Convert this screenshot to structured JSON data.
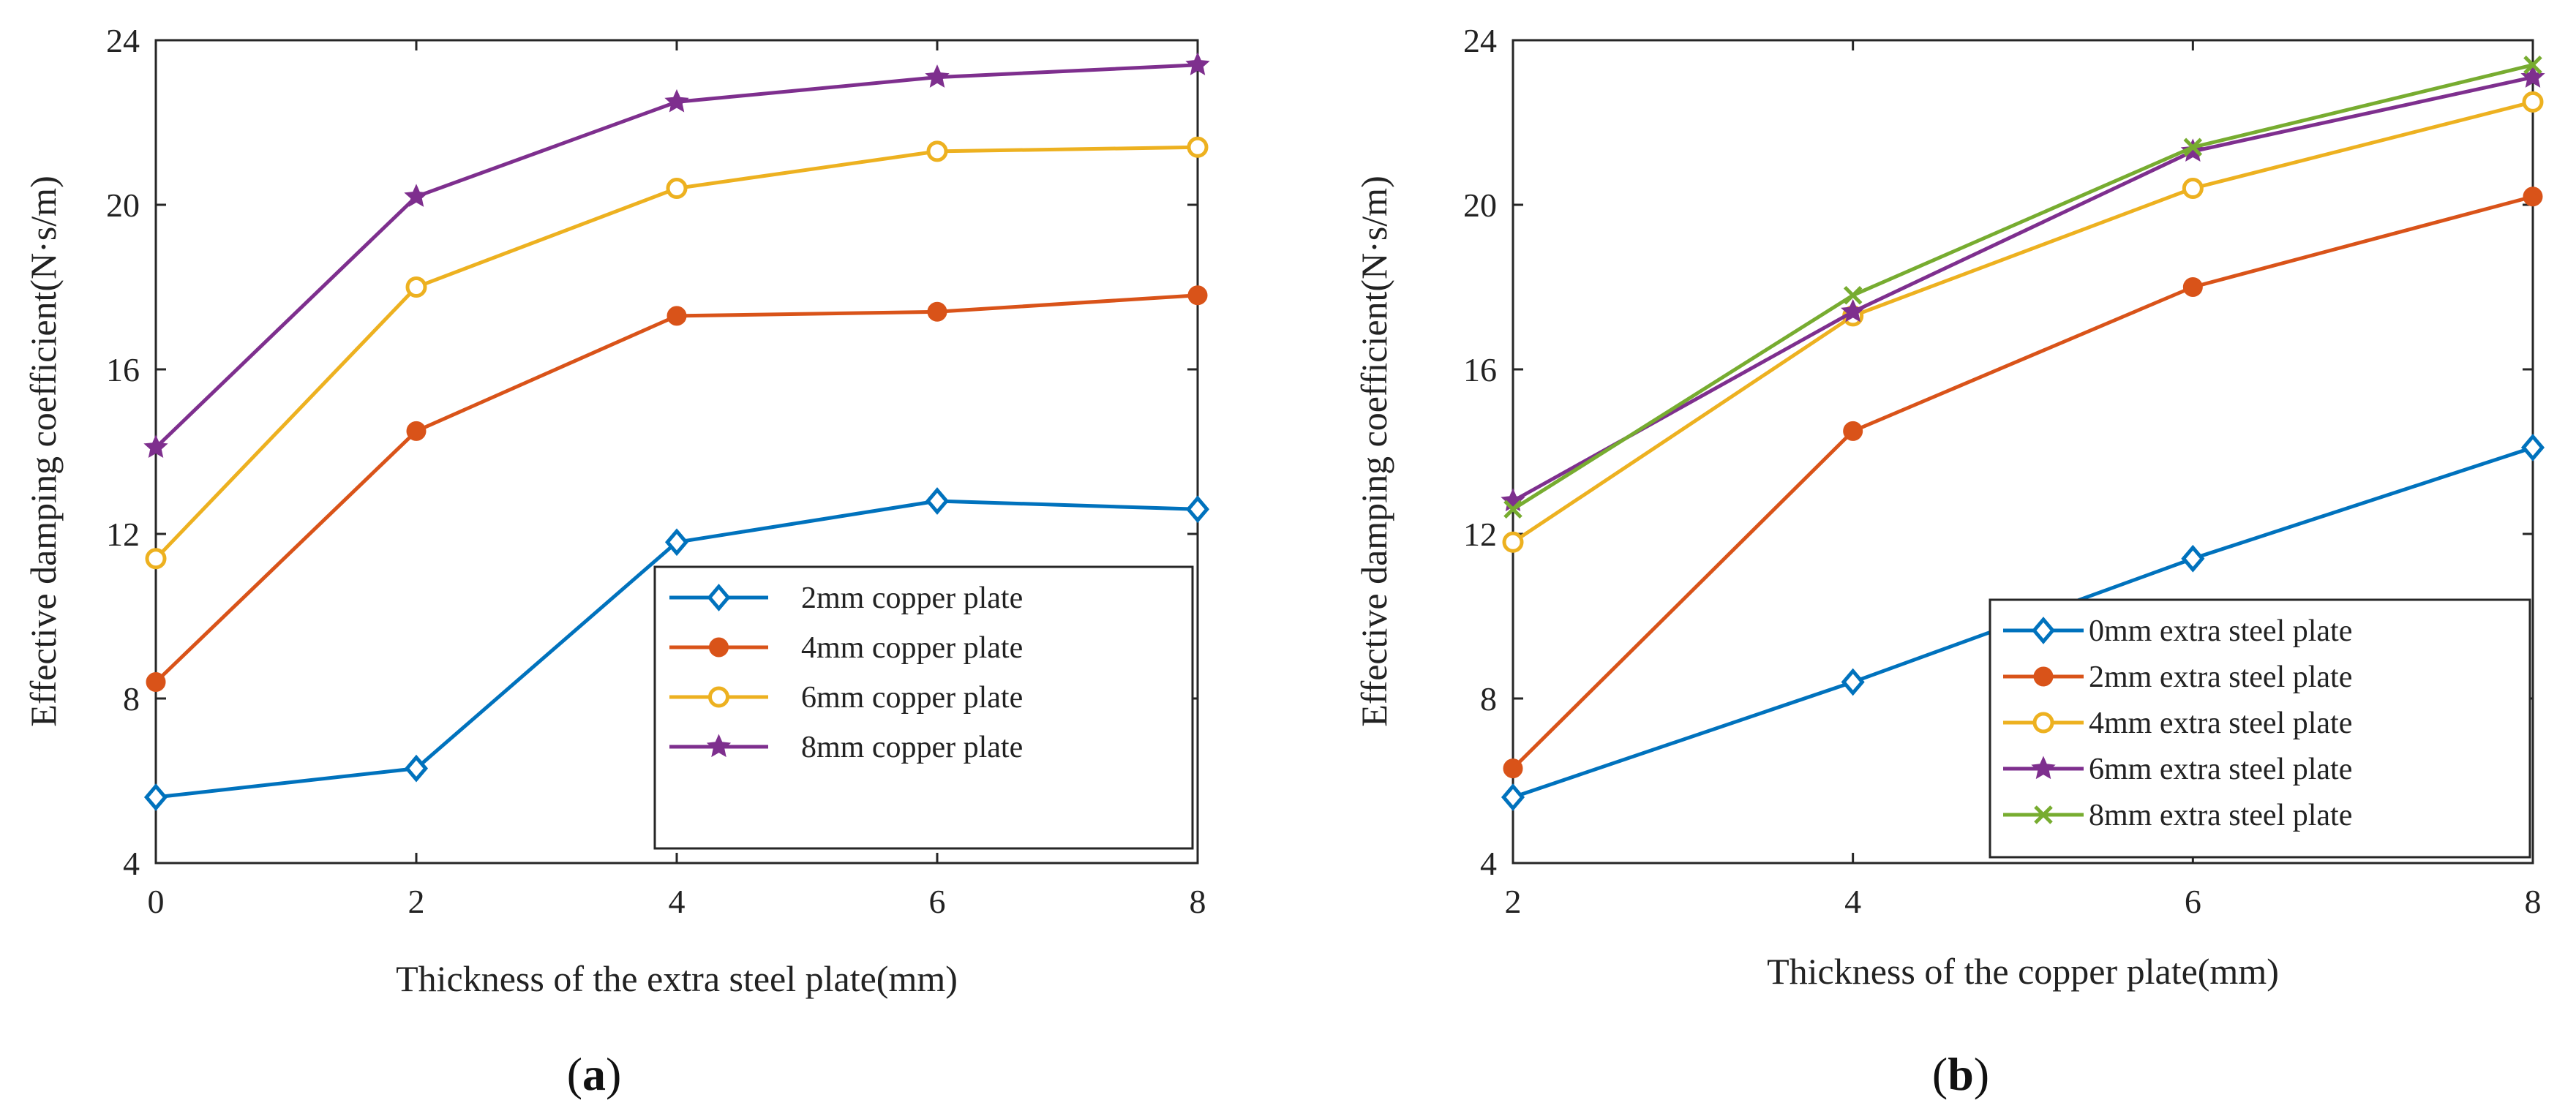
{
  "chart_data": [
    {
      "type": "line",
      "panel_caption": "(a)",
      "panel_caption_parts": [
        "(",
        "a",
        ")"
      ],
      "xlabel": "Thickness of the extra steel plate(mm)",
      "ylabel": "Effective damping coefficient(N·s/m)",
      "x": [
        0,
        2,
        4,
        6,
        8
      ],
      "xlim": [
        0,
        8
      ],
      "ylim": [
        4,
        24
      ],
      "xticks": [
        "0",
        "2",
        "4",
        "6",
        "8"
      ],
      "yticks": [
        "4",
        "8",
        "12",
        "16",
        "20",
        "24"
      ],
      "grid": false,
      "legend_position": "lower-right",
      "series": [
        {
          "name": "2mm copper plate",
          "color": "#0072BD",
          "marker": "diamond",
          "values": [
            5.6,
            6.3,
            11.8,
            12.8,
            12.6
          ]
        },
        {
          "name": "4mm copper plate",
          "color": "#D95319",
          "marker": "circle",
          "values": [
            8.4,
            14.5,
            17.3,
            17.4,
            17.8
          ]
        },
        {
          "name": "6mm copper plate",
          "color": "#EDB120",
          "marker": "circle-open",
          "values": [
            11.4,
            18.0,
            20.4,
            21.3,
            21.4
          ]
        },
        {
          "name": "8mm copper plate",
          "color": "#7E2F8E",
          "marker": "star",
          "values": [
            14.1,
            20.2,
            22.5,
            23.1,
            23.4
          ]
        }
      ]
    },
    {
      "type": "line",
      "panel_caption": "(b)",
      "panel_caption_parts": [
        "(",
        "b",
        ")"
      ],
      "xlabel": "Thickness of the copper plate(mm)",
      "ylabel": "Effective damping coefficient(N·s/m)",
      "x": [
        2,
        4,
        6,
        8
      ],
      "xlim": [
        2,
        8
      ],
      "ylim": [
        4,
        24
      ],
      "xticks": [
        "2",
        "4",
        "6",
        "8"
      ],
      "yticks": [
        "4",
        "8",
        "12",
        "16",
        "20",
        "24"
      ],
      "grid": false,
      "legend_position": "lower-right",
      "series": [
        {
          "name": "0mm extra steel plate",
          "color": "#0072BD",
          "marker": "diamond",
          "values": [
            5.6,
            8.4,
            11.4,
            14.1
          ]
        },
        {
          "name": "2mm extra steel plate",
          "color": "#D95319",
          "marker": "circle",
          "values": [
            6.3,
            14.5,
            18.0,
            20.2
          ]
        },
        {
          "name": "4mm extra steel plate",
          "color": "#EDB120",
          "marker": "circle-open",
          "values": [
            11.8,
            17.3,
            20.4,
            22.5
          ]
        },
        {
          "name": "6mm extra steel plate",
          "color": "#7E2F8E",
          "marker": "star",
          "values": [
            12.8,
            17.4,
            21.3,
            23.1
          ]
        },
        {
          "name": "8mm extra steel plate",
          "color": "#77AC30",
          "marker": "x",
          "values": [
            12.6,
            17.8,
            21.4,
            23.4
          ]
        }
      ]
    }
  ]
}
